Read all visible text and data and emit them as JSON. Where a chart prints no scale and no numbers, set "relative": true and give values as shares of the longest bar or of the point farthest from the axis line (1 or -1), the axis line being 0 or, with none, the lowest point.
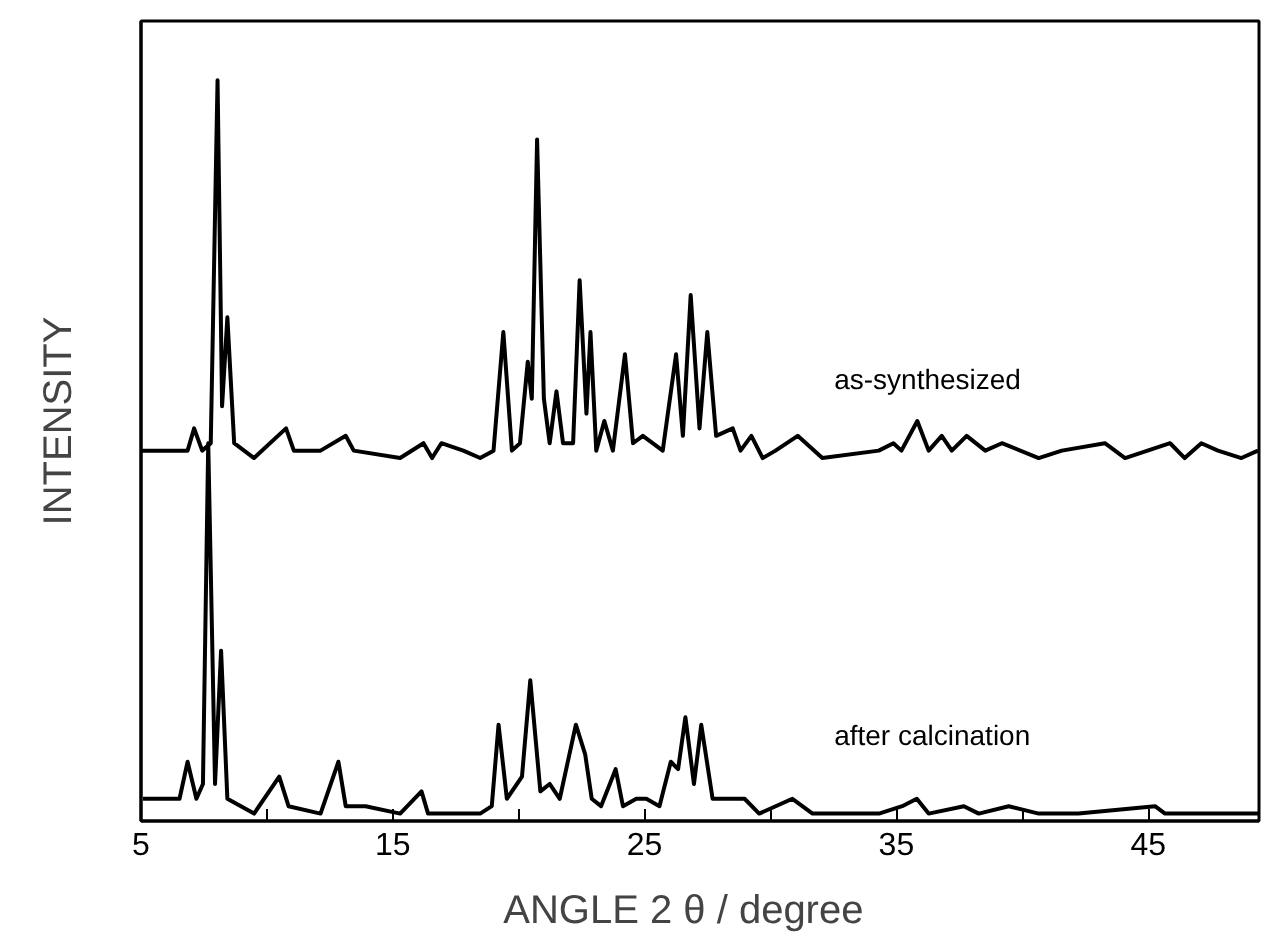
{
  "chart_data": {
    "type": "line",
    "relative": true,
    "xlabel": "ANGLE    2 θ / degree",
    "ylabel": "INTENSITY",
    "xlim": [
      5,
      49.4
    ],
    "xticks": [
      5,
      {
        "value": 10,
        "label": null
      },
      15,
      {
        "value": 20,
        "label": null
      },
      25,
      {
        "value": 30,
        "label": null
      },
      35,
      {
        "value": 40,
        "label": null
      },
      45
    ],
    "tick_labels": "x",
    "grid": false,
    "legend": false,
    "marker": "none",
    "line_style": "solid",
    "series": [
      {
        "name": "as-synthesized",
        "color": "#000000",
        "x": [
          5.0,
          6.85,
          7.11,
          7.43,
          7.77,
          8.04,
          8.22,
          8.43,
          8.7,
          9.49,
          10.76,
          11.07,
          12.13,
          13.13,
          13.45,
          15.29,
          16.22,
          16.56,
          16.93,
          17.8,
          18.47,
          19.0,
          19.39,
          19.73,
          20.05,
          20.36,
          20.52,
          20.73,
          21.0,
          21.23,
          21.5,
          21.76,
          22.16,
          22.42,
          22.69,
          22.85,
          23.08,
          23.4,
          23.74,
          24.22,
          24.54,
          24.93,
          25.72,
          26.25,
          26.52,
          26.83,
          27.18,
          27.49,
          27.84,
          28.5,
          28.81,
          29.24,
          29.69,
          30.2,
          31.08,
          32.06,
          34.3,
          34.88,
          35.2,
          35.83,
          36.28,
          36.8,
          37.2,
          37.79,
          38.53,
          39.19,
          40.65,
          41.57,
          43.28,
          44.08,
          45.87,
          46.45,
          47.11,
          47.77,
          48.7,
          49.36
        ],
        "values": [
          0.5,
          0.5,
          0.53,
          0.5,
          0.51,
          1.0,
          0.56,
          0.68,
          0.51,
          0.49,
          0.53,
          0.5,
          0.5,
          0.52,
          0.5,
          0.49,
          0.51,
          0.49,
          0.51,
          0.5,
          0.49,
          0.5,
          0.66,
          0.5,
          0.51,
          0.62,
          0.57,
          0.92,
          0.57,
          0.51,
          0.58,
          0.51,
          0.51,
          0.73,
          0.55,
          0.66,
          0.5,
          0.54,
          0.5,
          0.63,
          0.51,
          0.52,
          0.5,
          0.63,
          0.52,
          0.71,
          0.53,
          0.66,
          0.52,
          0.53,
          0.5,
          0.52,
          0.49,
          0.5,
          0.52,
          0.49,
          0.5,
          0.51,
          0.5,
          0.54,
          0.5,
          0.52,
          0.5,
          0.52,
          0.5,
          0.51,
          0.49,
          0.5,
          0.51,
          0.49,
          0.51,
          0.49,
          0.51,
          0.5,
          0.49,
          0.5
        ]
      },
      {
        "name": "after calcination",
        "color": "#000000",
        "x": [
          5.08,
          6.53,
          6.85,
          7.2,
          7.46,
          7.67,
          7.94,
          8.18,
          8.43,
          9.49,
          10.49,
          10.86,
          12.13,
          12.84,
          13.13,
          13.92,
          15.29,
          16.14,
          16.4,
          18.47,
          18.93,
          19.2,
          19.53,
          20.13,
          20.46,
          20.86,
          21.23,
          21.63,
          22.27,
          22.64,
          22.9,
          23.27,
          23.85,
          24.14,
          24.67,
          25.07,
          25.59,
          26.04,
          26.33,
          26.62,
          26.96,
          27.25,
          27.7,
          28.23,
          28.97,
          29.55,
          30.87,
          31.67,
          34.31,
          35.23,
          35.81,
          36.28,
          37.68,
          38.27,
          39.46,
          40.65,
          42.23,
          45.27,
          45.67,
          47.52,
          49.36
        ],
        "values": [
          0.03,
          0.03,
          0.08,
          0.03,
          0.05,
          0.51,
          0.05,
          0.23,
          0.03,
          0.01,
          0.06,
          0.02,
          0.01,
          0.08,
          0.02,
          0.02,
          0.01,
          0.04,
          0.01,
          0.01,
          0.02,
          0.13,
          0.03,
          0.06,
          0.19,
          0.04,
          0.05,
          0.03,
          0.13,
          0.09,
          0.03,
          0.02,
          0.07,
          0.02,
          0.03,
          0.03,
          0.02,
          0.08,
          0.07,
          0.14,
          0.05,
          0.13,
          0.03,
          0.03,
          0.03,
          0.01,
          0.03,
          0.01,
          0.01,
          0.02,
          0.03,
          0.01,
          0.02,
          0.01,
          0.02,
          0.01,
          0.01,
          0.02,
          0.01,
          0.01,
          0.01
        ]
      }
    ]
  }
}
